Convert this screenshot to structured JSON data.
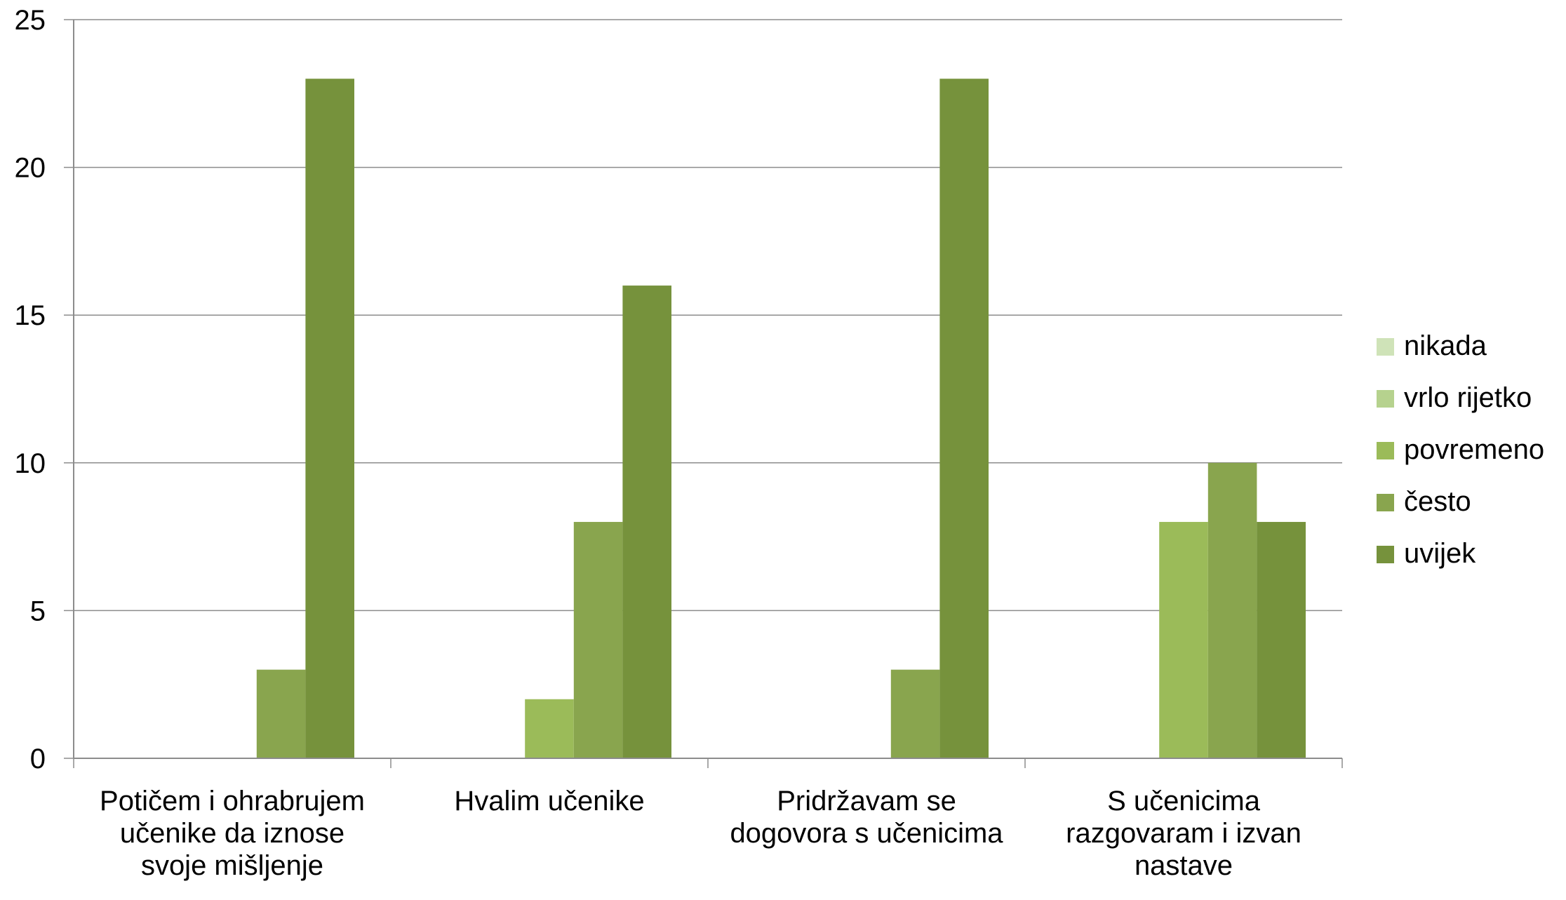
{
  "chart_data": {
    "type": "bar",
    "categories": [
      [
        "Potičem i ohrabrujem",
        "učenike da iznose",
        "svoje mišljenje"
      ],
      [
        "Hvalim učenike"
      ],
      [
        "Pridržavam se",
        "dogovora s učenicima"
      ],
      [
        "S učenicima",
        "razgovaram i izvan",
        "nastave"
      ]
    ],
    "series": [
      {
        "name": "nikada",
        "color": "#cfe3b8",
        "values": [
          0,
          0,
          0,
          0
        ]
      },
      {
        "name": "vrlo rijetko",
        "color": "#b6d28e",
        "values": [
          0,
          0,
          0,
          0
        ]
      },
      {
        "name": "povremeno",
        "color": "#9bbb59",
        "values": [
          0,
          2,
          0,
          8
        ]
      },
      {
        "name": "često",
        "color": "#89a54e",
        "values": [
          3,
          8,
          3,
          10
        ]
      },
      {
        "name": "uvijek",
        "color": "#76923c",
        "values": [
          23,
          16,
          23,
          8
        ]
      }
    ],
    "yticks": [
      "0",
      "5",
      "10",
      "15",
      "20",
      "25"
    ],
    "ylim": [
      0,
      25
    ],
    "grid": true,
    "legend_position": "right"
  }
}
